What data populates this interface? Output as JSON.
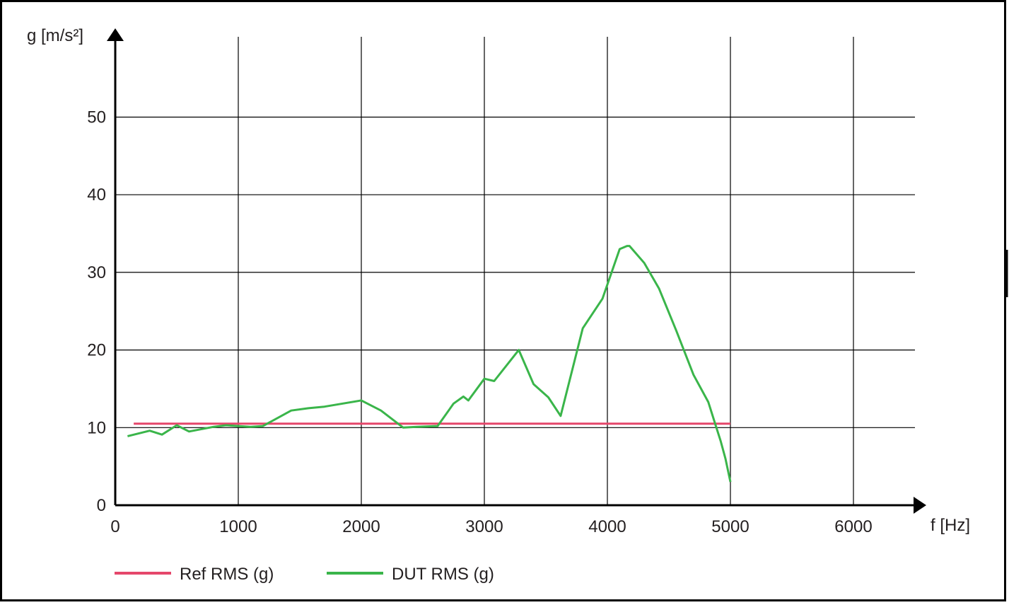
{
  "chart_data": {
    "type": "line",
    "ylabel": "g [m/s²]",
    "xlabel": "f [Hz]",
    "xlim": [
      0,
      6500
    ],
    "ylim": [
      0,
      55
    ],
    "x_ticks": [
      0,
      1000,
      2000,
      3000,
      4000,
      5000,
      6000
    ],
    "y_ticks": [
      0,
      10,
      20,
      30,
      40,
      50
    ],
    "grid": true,
    "legend_position": "bottom-left",
    "series": [
      {
        "name": "Ref RMS (g)",
        "color": "#e5476b",
        "x": [
          150,
          5000
        ],
        "y": [
          10.5,
          10.5
        ]
      },
      {
        "name": "DUT RMS (g)",
        "color": "#3ab54a",
        "x": [
          100,
          280,
          380,
          500,
          600,
          800,
          900,
          1000,
          1100,
          1200,
          1430,
          1570,
          1700,
          2000,
          2160,
          2340,
          2450,
          2620,
          2750,
          2830,
          2870,
          3000,
          3080,
          3280,
          3400,
          3520,
          3620,
          3800,
          3960,
          4100,
          4160,
          4180,
          4300,
          4420,
          4560,
          4700,
          4820,
          4880,
          4920,
          4960,
          5000
        ],
        "y": [
          8.9,
          9.6,
          9.1,
          10.3,
          9.5,
          10.1,
          10.3,
          10.2,
          10.1,
          10.2,
          12.2,
          12.5,
          12.7,
          13.5,
          12.2,
          10.0,
          10.1,
          10.2,
          13.1,
          14.0,
          13.5,
          16.3,
          16.0,
          20.0,
          15.6,
          13.9,
          11.5,
          22.8,
          26.6,
          33.0,
          33.4,
          33.4,
          31.2,
          27.9,
          22.5,
          16.8,
          13.3,
          10.3,
          8.3,
          6.0,
          3.0
        ]
      }
    ]
  }
}
